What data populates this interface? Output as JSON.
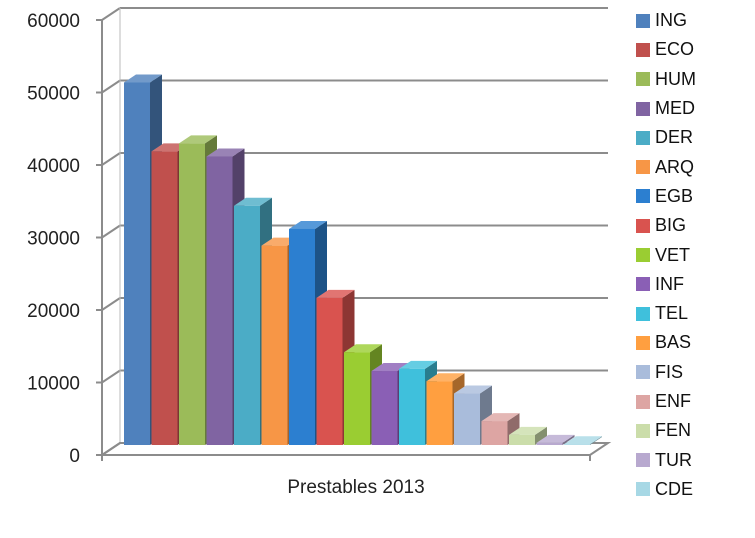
{
  "chart_data": {
    "type": "bar",
    "x_category_label": "Prestables 2013",
    "ylim": [
      0,
      60000
    ],
    "y_ticks": [
      "0",
      "10000",
      "20000",
      "30000",
      "40000",
      "50000",
      "60000"
    ],
    "grid": true,
    "legend_position": "right",
    "series": [
      {
        "name": "ING",
        "value": 50000,
        "color": "#4F81BD"
      },
      {
        "name": "ECO",
        "value": 40500,
        "color": "#C0504D"
      },
      {
        "name": "HUM",
        "value": 41600,
        "color": "#9BBB59"
      },
      {
        "name": "MED",
        "value": 39800,
        "color": "#8064A2"
      },
      {
        "name": "DER",
        "value": 33000,
        "color": "#4BACC6"
      },
      {
        "name": "ARQ",
        "value": 27500,
        "color": "#F79646"
      },
      {
        "name": "EGB",
        "value": 29800,
        "color": "#2C7FD0"
      },
      {
        "name": "BIG",
        "value": 20300,
        "color": "#D9534F"
      },
      {
        "name": "VET",
        "value": 12800,
        "color": "#9ACD32"
      },
      {
        "name": "INF",
        "value": 10200,
        "color": "#8A5FB5"
      },
      {
        "name": "TEL",
        "value": 10500,
        "color": "#3FC0DC"
      },
      {
        "name": "BAS",
        "value": 8800,
        "color": "#FF9F40"
      },
      {
        "name": "FIS",
        "value": 7100,
        "color": "#A9BCDB"
      },
      {
        "name": "ENF",
        "value": 3300,
        "color": "#DDA5A3"
      },
      {
        "name": "FEN",
        "value": 1400,
        "color": "#CBDDAA"
      },
      {
        "name": "TUR",
        "value": 300,
        "color": "#B8A9CF"
      },
      {
        "name": "CDE",
        "value": 100,
        "color": "#A7D8E5"
      }
    ]
  }
}
